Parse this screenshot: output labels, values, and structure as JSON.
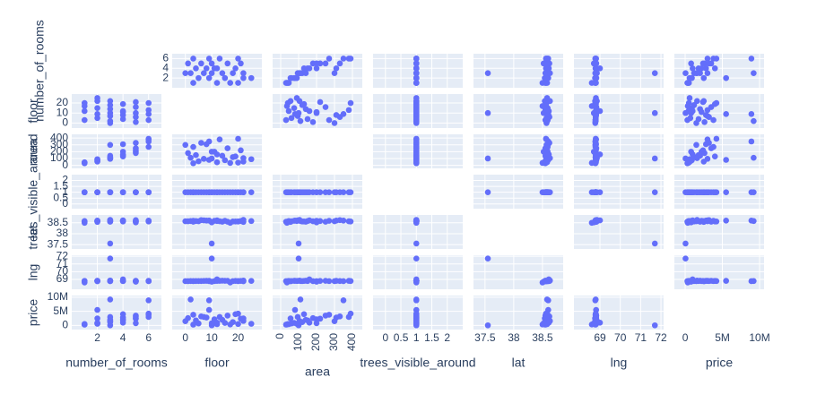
{
  "chart_data": {
    "type": "splom",
    "color": "#636efa",
    "background": "#e5ecf6",
    "grid": true,
    "dimensions": [
      {
        "label": "number_of_rooms",
        "lim": [
          0,
          7
        ],
        "ticks": [
          2,
          4,
          6
        ],
        "values": [
          1,
          1,
          1,
          2,
          2,
          2,
          2,
          3,
          3,
          3,
          3,
          3,
          3,
          4,
          4,
          4,
          4,
          5,
          5,
          5,
          5,
          6,
          6,
          6,
          6,
          2,
          1,
          4,
          3,
          5
        ]
      },
      {
        "label": "floor",
        "lim": [
          -5,
          29
        ],
        "ticks": [
          0,
          10,
          20
        ],
        "values": [
          3,
          12,
          20,
          5,
          15,
          22,
          9,
          2,
          10,
          18,
          7,
          0,
          14,
          4,
          11,
          19,
          8,
          1,
          16,
          6,
          21,
          3,
          13,
          20,
          9,
          25,
          17,
          12,
          22,
          10
        ]
      },
      {
        "label": "area",
        "lim": [
          -45,
          455
        ],
        "ticks": [
          0,
          100,
          200,
          300,
          400
        ],
        "values": [
          30,
          45,
          40,
          60,
          75,
          55,
          80,
          110,
          100,
          120,
          95,
          300,
          140,
          150,
          200,
          130,
          310,
          180,
          250,
          330,
          220,
          270,
          380,
          390,
          350,
          90,
          35,
          160,
          105,
          200
        ]
      },
      {
        "label": "trees_visible_around",
        "lim": [
          -0.4,
          2.5
        ],
        "ticks": [
          0,
          0.5,
          1,
          1.5,
          2
        ],
        "values": [
          1,
          1,
          1,
          1,
          1,
          1,
          1,
          1,
          1,
          1,
          1,
          1,
          1,
          1,
          1,
          1,
          1,
          1,
          1,
          1,
          1,
          1,
          1,
          1,
          1,
          1,
          1,
          1,
          1,
          1
        ]
      },
      {
        "label": "lat",
        "lim": [
          37.3,
          38.86
        ],
        "ticks": [
          37.5,
          38,
          38.5
        ],
        "values": [
          38.55,
          38.58,
          38.56,
          38.57,
          38.59,
          38.54,
          38.6,
          38.58,
          37.55,
          38.56,
          38.61,
          38.57,
          38.55,
          38.58,
          38.59,
          38.56,
          38.6,
          38.57,
          38.55,
          38.62,
          38.58,
          38.59,
          38.57,
          38.56,
          38.6,
          38.58,
          38.5,
          38.61,
          38.63,
          38.52
        ]
      },
      {
        "label": "lng",
        "lim": [
          67.72,
          72.13
        ],
        "ticks": [
          69,
          70,
          71,
          72
        ],
        "values": [
          68.78,
          68.8,
          68.77,
          68.79,
          68.82,
          68.76,
          68.81,
          68.79,
          71.7,
          68.78,
          68.8,
          68.77,
          68.83,
          68.79,
          68.78,
          68.8,
          68.81,
          68.77,
          68.82,
          68.79,
          68.8,
          68.78,
          68.81,
          68.79,
          68.77,
          68.8,
          68.6,
          69.0,
          68.85,
          68.7
        ]
      },
      {
        "label": "price",
        "lim": [
          -1450000,
          10600000
        ],
        "ticks": [
          0,
          {
            "value": 5000000,
            "label": "5M"
          },
          {
            "value": 10000000,
            "label": "10M"
          }
        ],
        "values": [
          300000,
          450000,
          500000,
          700000,
          900000,
          2500000,
          5500000,
          9200000,
          50000,
          1200000,
          3000000,
          1500000,
          2000000,
          1800000,
          2200000,
          4000000,
          2800000,
          2600000,
          3500000,
          3200000,
          2400000,
          3800000,
          3000000,
          4200000,
          8900000,
          600000,
          350000,
          1000000,
          1600000,
          800000
        ]
      }
    ]
  }
}
